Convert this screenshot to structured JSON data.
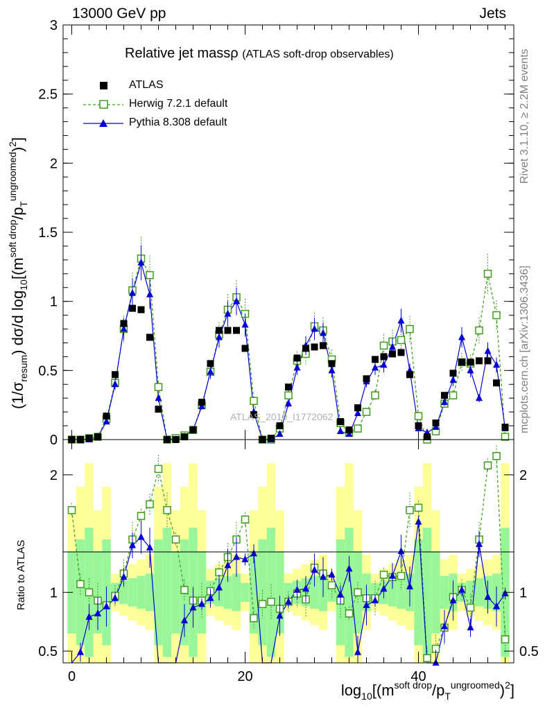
{
  "header": {
    "left": "13000 GeV pp",
    "right": "Jets",
    "side_top": "Rivet 3.1.10, ≥ 2.2M events",
    "side_bottom": "mcplots.cern.ch [arXiv:1306.3436]",
    "watermark": "ATLAS_2019_I1772062"
  },
  "title": {
    "main": "Relative jet massρ",
    "sub": "(ATLAS soft-drop observables)"
  },
  "axes": {
    "y_main_text": "(1/σ",
    "y_main_sub": "resum",
    "y_main_mid": ") dσ/d log",
    "y_main_sub2": "10",
    "y_main_end": "[(m",
    "y_main_sup": "soft drop",
    "y_main_slash": "/p",
    "y_main_sub3": "T",
    "y_main_sup2": "ungroomed",
    "y_main_close": ")",
    "y_main_sup3": "2",
    "y_main_final": "]",
    "y_ratio": "Ratio to ATLAS",
    "x_text": "log",
    "x_sub": "10",
    "x_mid": "[(m",
    "x_sup": "soft drop",
    "x_slash": "/p",
    "x_sub2": "T",
    "x_sup2": "ungroomed",
    "x_close": ")",
    "x_sup3": "2",
    "x_final": "]"
  },
  "legend": [
    {
      "name": "ATLAS",
      "color": "#000000",
      "marker": "filled-square"
    },
    {
      "name": "Herwig 7.2.1 default",
      "color": "#3d9a1c",
      "marker": "open-square"
    },
    {
      "name": "Pythia 8.308 default",
      "color": "#0000d4",
      "marker": "filled-triangle"
    }
  ],
  "chart_data": {
    "type": "scatter",
    "x_range": [
      -1,
      51
    ],
    "main": {
      "ylim": [
        0,
        3
      ],
      "y_ticks": [
        "0",
        "0.5",
        "1",
        "1.5",
        "2",
        "2.5",
        "3"
      ],
      "series": [
        {
          "name": "ATLAS",
          "values": [
            0.0,
            0.0,
            0.01,
            0.02,
            0.17,
            0.47,
            0.84,
            0.95,
            0.94,
            0.74,
            0.22,
            0.0,
            0.0,
            0.02,
            0.07,
            0.27,
            0.55,
            0.79,
            0.79,
            0.79,
            0.66,
            0.18,
            0.0,
            0.01,
            0.1,
            0.38,
            0.59,
            0.66,
            0.67,
            0.68,
            0.55,
            0.13,
            0.07,
            0.23,
            0.44,
            0.58,
            0.6,
            0.62,
            0.63,
            0.47,
            0.1,
            0.02,
            0.12,
            0.32,
            0.48,
            0.56,
            0.56,
            0.57,
            0.57,
            0.41,
            0.09
          ]
        },
        {
          "name": "Herwig 7.2.1 default",
          "values": [
            0.0,
            0.0,
            0.01,
            0.02,
            0.15,
            0.41,
            0.8,
            1.08,
            1.31,
            1.19,
            0.38,
            0.0,
            0.01,
            0.03,
            0.07,
            0.25,
            0.49,
            0.76,
            0.94,
            1.03,
            0.91,
            0.28,
            0.0,
            0.0,
            0.08,
            0.32,
            0.57,
            0.62,
            0.82,
            0.79,
            0.58,
            0.12,
            0.05,
            0.08,
            0.2,
            0.32,
            0.68,
            0.71,
            0.72,
            0.8,
            0.17,
            0.0,
            0.06,
            0.26,
            0.32,
            0.56,
            0.55,
            0.79,
            1.2,
            0.9,
            0.02
          ]
        },
        {
          "name": "Pythia 8.308 default",
          "values": [
            0.0,
            0.0,
            0.0,
            0.02,
            0.13,
            0.4,
            0.8,
            1.06,
            1.28,
            1.05,
            0.3,
            0.0,
            0.0,
            0.02,
            0.07,
            0.24,
            0.49,
            0.74,
            0.91,
            1.0,
            0.83,
            0.2,
            0.0,
            0.0,
            0.04,
            0.26,
            0.52,
            0.68,
            0.8,
            0.77,
            0.5,
            0.06,
            0.04,
            0.19,
            0.42,
            0.52,
            0.54,
            0.67,
            0.86,
            0.5,
            0.08,
            0.05,
            0.09,
            0.27,
            0.43,
            0.74,
            0.5,
            0.3,
            0.64,
            0.54,
            0.08
          ]
        }
      ]
    },
    "ratio": {
      "ylim": [
        0.4,
        2.3
      ],
      "y_ticks": [
        "0.5",
        "1",
        "2"
      ],
      "x_ticks": [
        "0",
        "20",
        "40"
      ],
      "herwig": [
        1.7,
        1.07,
        1.0,
        0.93,
        0.89,
        0.97,
        1.16,
        1.45,
        1.65,
        1.75,
        2.05,
        1.7,
        1.45,
        1.02,
        0.93,
        0.93,
        1.01,
        1.17,
        1.3,
        1.45,
        1.62,
        0.78,
        0.9,
        0.92,
        0.86,
        0.92,
        0.99,
        0.94,
        1.21,
        1.16,
        1.06,
        0.93,
        0.82,
        1.0,
        0.95,
        0.95,
        1.15,
        1.13,
        1.14,
        1.7,
        1.72,
        0.44,
        0.52,
        0.7,
        0.96,
        1.02,
        0.87,
        1.45,
        2.08,
        2.16,
        0.6
      ],
      "pythia": [
        0.0,
        0.49,
        0.79,
        0.82,
        0.88,
        0.95,
        1.13,
        1.4,
        1.47,
        1.38,
        0.0,
        0.0,
        0.0,
        0.76,
        0.87,
        0.9,
        0.95,
        1.04,
        1.23,
        1.3,
        1.28,
        1.33,
        0.0,
        0.0,
        0.8,
        0.92,
        1.02,
        1.03,
        1.19,
        1.13,
        1.15,
        0.98,
        1.2,
        0.49,
        0.89,
        0.93,
        1.03,
        1.14,
        1.35,
        1.05,
        1.6,
        0.0,
        0.4,
        0.71,
        0.93,
        1.02,
        0.7,
        1.41,
        0.96,
        0.88,
        0.99
      ]
    }
  }
}
